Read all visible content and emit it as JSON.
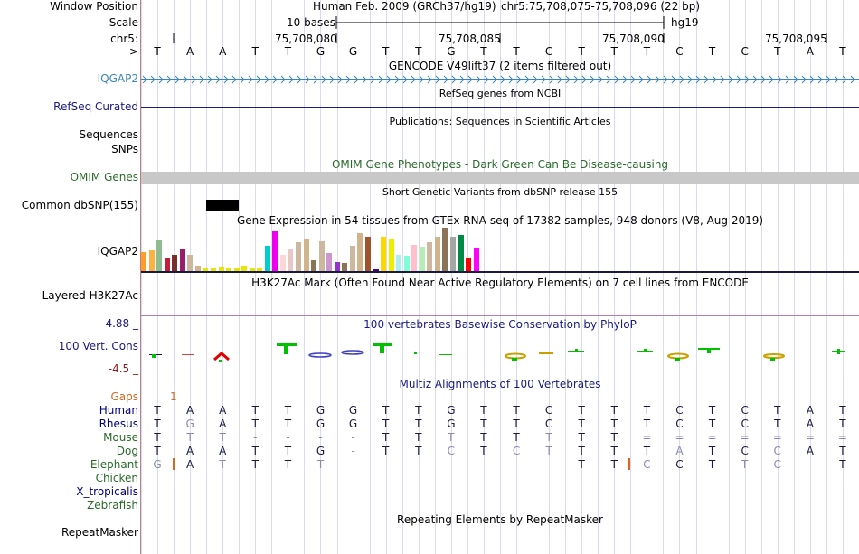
{
  "labels": {
    "window_position": "Window Position",
    "scale": "Scale",
    "chrom": "chr5:",
    "strand_arrow": "--->",
    "iqgap2_gene": "IQGAP2",
    "refseq": "RefSeq Curated",
    "sequences": "Sequences",
    "snps": "SNPs",
    "omim": "OMIM Genes",
    "common_snp": "Common dbSNP(155)",
    "gtex": "IQGAP2",
    "h3k27": "Layered H3K27Ac",
    "cons_max": "4.88 _",
    "cons_label": "100 Vert. Cons",
    "cons_min": "-4.5 _",
    "gaps": "Gaps",
    "repeatmasker": "RepeatMasker"
  },
  "header": {
    "assembly": "Human Feb. 2009 (GRCh37/hg19)",
    "position": "chr5:75,708,075-75,708,096 (22 bp)",
    "scale_text": "10 bases",
    "scale_db": "hg19"
  },
  "coords": [
    "75,708,080",
    "75,708,085",
    "75,708,090",
    "75,708,095"
  ],
  "dna": [
    "T",
    "A",
    "A",
    "T",
    "T",
    "G",
    "G",
    "T",
    "T",
    "G",
    "T",
    "T",
    "C",
    "T",
    "T",
    "T",
    "C",
    "T",
    "C",
    "T",
    "A",
    "T"
  ],
  "tracks": {
    "gencode": "GENCODE V49lift37 (2 items filtered out)",
    "refseq": "RefSeq genes from NCBI",
    "publications": "Publications: Sequences in Scientific Articles",
    "omim": "OMIM Gene Phenotypes - Dark Green Can Be Disease-causing",
    "snp": "Short Genetic Variants from dbSNP release 155",
    "gtex": "Gene Expression in 54 tissues from GTEx RNA-seq of 17382 samples, 948 donors (V8, Aug 2019)",
    "h3k27": "H3K27Ac Mark (Often Found Near Active Regulatory Elements) on 7 cell lines from ENCODE",
    "phylop": "100 vertebrates Basewise Conservation by PhyloP",
    "multiz": "Multiz Alignments of 100 Vertebrates",
    "repeatmasker": "Repeating Elements by RepeatMasker"
  },
  "gaps_value": "1",
  "species": [
    {
      "name": "Human",
      "color": "#000080",
      "seq": [
        "T",
        "A",
        "A",
        "T",
        "T",
        "G",
        "G",
        "T",
        "T",
        "G",
        "T",
        "T",
        "C",
        "T",
        "T",
        "T",
        "C",
        "T",
        "C",
        "T",
        "A",
        "T"
      ]
    },
    {
      "name": "Rhesus",
      "color": "#000080",
      "seq": [
        "T",
        "G",
        "A",
        "T",
        "T",
        "G",
        "G",
        "T",
        "T",
        "G",
        "T",
        "T",
        "C",
        "T",
        "T",
        "T",
        "C",
        "T",
        "C",
        "T",
        "A",
        "T"
      ]
    },
    {
      "name": "Mouse",
      "color": "#2a6b2a",
      "seq": [
        "T",
        "T",
        "T",
        "-",
        "-",
        "-",
        "-",
        "T",
        "T",
        "T",
        "T",
        "T",
        "T",
        "T",
        "T",
        "=",
        "=",
        "=",
        "=",
        "=",
        "=",
        "="
      ]
    },
    {
      "name": "Dog",
      "color": "#2a6b2a",
      "seq": [
        "T",
        "A",
        "A",
        "T",
        "T",
        "G",
        "-",
        "T",
        "T",
        "C",
        "T",
        "C",
        "T",
        "T",
        "T",
        "T",
        "A",
        "T",
        "C",
        "C",
        "A",
        "T"
      ]
    },
    {
      "name": "Elephant",
      "color": "#2a6b2a",
      "seq": [
        "G",
        "A",
        "T",
        "T",
        "T",
        "T",
        "-",
        "-",
        "-",
        "-",
        "-",
        "-",
        "-",
        "T",
        "T",
        "C",
        "C",
        "T",
        "T",
        "C",
        "-",
        "T"
      ]
    },
    {
      "name": "Chicken",
      "color": "#2a6b2a",
      "seq": []
    },
    {
      "name": "X_tropicalis",
      "color": "#000080",
      "seq": []
    },
    {
      "name": "Zebrafish",
      "color": "#2a6b2a",
      "seq": []
    }
  ],
  "gtex_bars": [
    {
      "c": "#ff9d2a",
      "v": 21
    },
    {
      "c": "#ffb043",
      "v": 23
    },
    {
      "c": "#8fbc8f",
      "v": 34
    },
    {
      "c": "#c41e3a",
      "v": 15
    },
    {
      "c": "#7a2d2d",
      "v": 18
    },
    {
      "c": "#9b1c6b",
      "v": 25
    },
    {
      "c": "#cdb79e",
      "v": 18
    },
    {
      "c": "#d2b48c",
      "v": 6
    },
    {
      "c": "#e6e600",
      "v": 3
    },
    {
      "c": "#e6e600",
      "v": 4
    },
    {
      "c": "#e6e600",
      "v": 5
    },
    {
      "c": "#e6e600",
      "v": 4
    },
    {
      "c": "#e6e600",
      "v": 4
    },
    {
      "c": "#e6e600",
      "v": 6
    },
    {
      "c": "#e6e600",
      "v": 4
    },
    {
      "c": "#e6e600",
      "v": 3
    },
    {
      "c": "#00cdcd",
      "v": 28
    },
    {
      "c": "#ee00ee",
      "v": 44
    },
    {
      "c": "#ffd5d5",
      "v": 18
    },
    {
      "c": "#e8c7c7",
      "v": 24
    },
    {
      "c": "#cdb79e",
      "v": 32
    },
    {
      "c": "#d2b48c",
      "v": 35
    },
    {
      "c": "#8b7355",
      "v": 12
    },
    {
      "c": "#cdb79e",
      "v": 33
    },
    {
      "c": "#cd96cd",
      "v": 20
    },
    {
      "c": "#9932cc",
      "v": 10
    },
    {
      "c": "#8b7355",
      "v": 9
    },
    {
      "c": "#cdb79e",
      "v": 28
    },
    {
      "c": "#d2b48c",
      "v": 42
    },
    {
      "c": "#a0522d",
      "v": 38
    },
    {
      "c": "#4b0082",
      "v": 2
    },
    {
      "c": "#ffd700",
      "v": 38
    },
    {
      "c": "#eeee00",
      "v": 35
    },
    {
      "c": "#aeeeee",
      "v": 18
    },
    {
      "c": "#7fffd4",
      "v": 17
    },
    {
      "c": "#ffc0cb",
      "v": 29
    },
    {
      "c": "#b4eeb4",
      "v": 27
    },
    {
      "c": "#cdb79e",
      "v": 32
    },
    {
      "c": "#d2b48c",
      "v": 38
    },
    {
      "c": "#8b7355",
      "v": 48
    },
    {
      "c": "#a6a6a6",
      "v": 38
    },
    {
      "c": "#008b45",
      "v": 40
    },
    {
      "c": "#ff0000",
      "v": 14
    },
    {
      "c": "#ff00ff",
      "v": 26
    }
  ]
}
